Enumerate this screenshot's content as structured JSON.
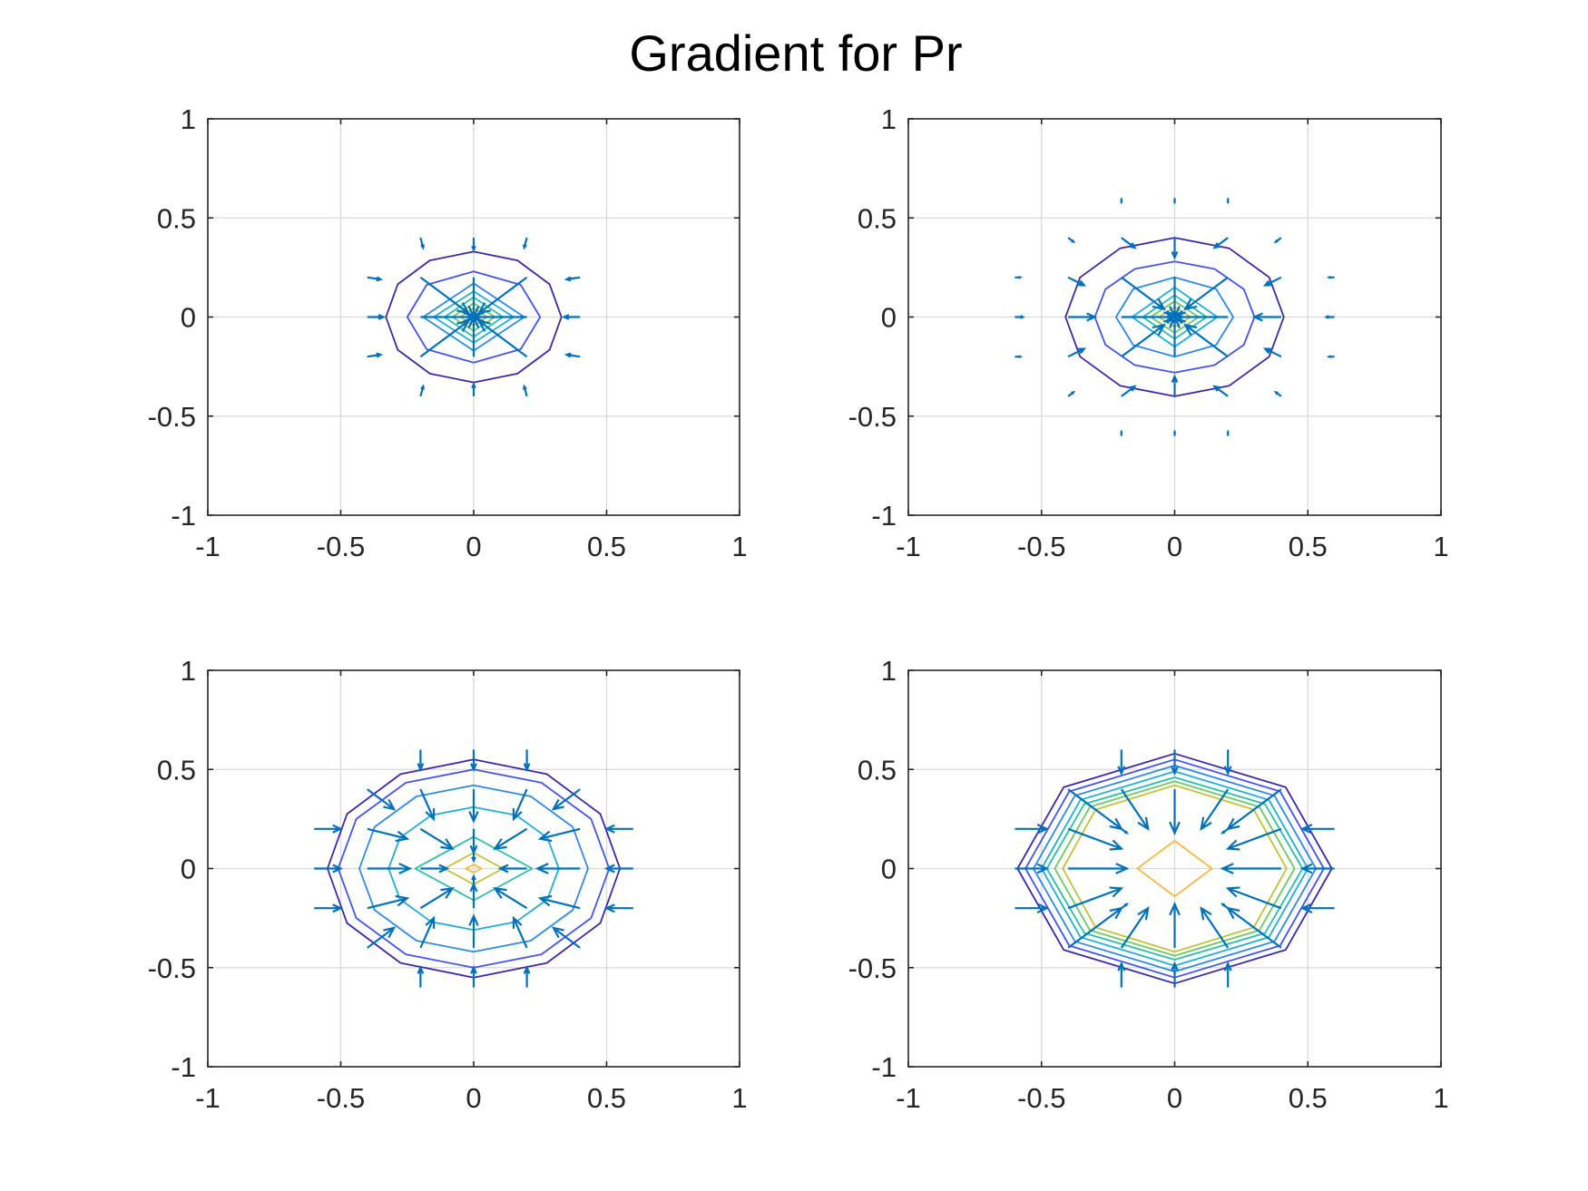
{
  "figure": {
    "title": "Gradient for Pr"
  },
  "colors": {
    "axis": "#262626",
    "grid": "#d9d9d9",
    "arrow": "#0072BD",
    "contour_scale": [
      "#3e26a8",
      "#4353f3",
      "#2e8ae9",
      "#1db1d6",
      "#27c0a8",
      "#6ccb5f",
      "#c1c334",
      "#f8ba3d",
      "#f9fb0e"
    ]
  },
  "chart_data": [
    {
      "type": "contour_quiver",
      "panel": "top-left",
      "xlim": [
        -1,
        1
      ],
      "ylim": [
        -1,
        1
      ],
      "xticks": [
        -1,
        -0.5,
        0,
        0.5,
        1
      ],
      "yticks": [
        -1,
        -0.5,
        0,
        0.5,
        1
      ],
      "xtick_labels": [
        "-1",
        "-0.5",
        "0",
        "0.5",
        "1"
      ],
      "ytick_labels": [
        "-1",
        "-0.5",
        "0",
        "0.5",
        "1"
      ],
      "grid": true,
      "contours": [
        {
          "level": 1,
          "rx": 0.33,
          "ry": 0.33,
          "n": 12
        },
        {
          "level": 2,
          "rx": 0.25,
          "ry": 0.23,
          "n": 8
        },
        {
          "level": 3,
          "rx": 0.19,
          "ry": 0.17,
          "n": 4
        },
        {
          "level": 4,
          "rx": 0.15,
          "ry": 0.13,
          "n": 4
        },
        {
          "level": 5,
          "rx": 0.11,
          "ry": 0.1,
          "n": 4
        },
        {
          "level": 6,
          "rx": 0.08,
          "ry": 0.07,
          "n": 4
        },
        {
          "level": 7,
          "rx": 0.05,
          "ry": 0.045,
          "n": 4
        },
        {
          "level": 8,
          "rx": 0.025,
          "ry": 0.02,
          "n": 4
        }
      ],
      "arrows": [
        [
          -0.2,
          0.2,
          0.18,
          -0.18
        ],
        [
          0,
          0.2,
          0,
          -0.2
        ],
        [
          0.2,
          0.2,
          -0.18,
          -0.18
        ],
        [
          -0.2,
          0,
          0.2,
          0
        ],
        [
          0.2,
          0,
          -0.2,
          0
        ],
        [
          -0.2,
          -0.2,
          0.18,
          0.18
        ],
        [
          0,
          -0.2,
          0,
          0.2
        ],
        [
          0.2,
          -0.2,
          -0.18,
          0.18
        ],
        [
          0,
          0.4,
          0,
          -0.06
        ],
        [
          0,
          -0.4,
          0,
          0.06
        ],
        [
          -0.4,
          0,
          0.06,
          0
        ],
        [
          0.4,
          0,
          -0.06,
          0
        ],
        [
          -0.2,
          0.4,
          0.01,
          -0.05
        ],
        [
          0.2,
          0.4,
          -0.01,
          -0.05
        ],
        [
          -0.2,
          -0.4,
          0.01,
          0.05
        ],
        [
          0.2,
          -0.4,
          -0.01,
          0.05
        ],
        [
          -0.4,
          0.2,
          0.05,
          -0.01
        ],
        [
          0.4,
          0.2,
          -0.05,
          -0.01
        ],
        [
          -0.4,
          -0.2,
          0.05,
          0.01
        ],
        [
          0.4,
          -0.2,
          -0.05,
          0.01
        ],
        [
          -0.02,
          0,
          0.04,
          0
        ],
        [
          0.02,
          0,
          -0.04,
          0
        ],
        [
          0,
          0.02,
          0,
          -0.04
        ],
        [
          0,
          -0.02,
          0,
          0.04
        ],
        [
          -0.02,
          0.02,
          0.03,
          -0.03
        ],
        [
          0.02,
          0.02,
          -0.03,
          -0.03
        ],
        [
          -0.02,
          -0.02,
          0.03,
          0.03
        ],
        [
          0.02,
          -0.02,
          -0.03,
          0.03
        ]
      ]
    },
    {
      "type": "contour_quiver",
      "panel": "top-right",
      "xlim": [
        -1,
        1
      ],
      "ylim": [
        -1,
        1
      ],
      "xticks": [
        -1,
        -0.5,
        0,
        0.5,
        1
      ],
      "yticks": [
        -1,
        -0.5,
        0,
        0.5,
        1
      ],
      "xtick_labels": [
        "-1",
        "-0.5",
        "0",
        "0.5",
        "1"
      ],
      "ytick_labels": [
        "-1",
        "-0.5",
        "0",
        "0.5",
        "1"
      ],
      "grid": true,
      "contours": [
        {
          "level": 1,
          "rx": 0.41,
          "ry": 0.4,
          "n": 12
        },
        {
          "level": 2,
          "rx": 0.3,
          "ry": 0.28,
          "n": 12
        },
        {
          "level": 3,
          "rx": 0.22,
          "ry": 0.2,
          "n": 8
        },
        {
          "level": 4,
          "rx": 0.16,
          "ry": 0.15,
          "n": 4
        },
        {
          "level": 5,
          "rx": 0.12,
          "ry": 0.11,
          "n": 4
        },
        {
          "level": 6,
          "rx": 0.09,
          "ry": 0.08,
          "n": 4
        },
        {
          "level": 7,
          "rx": 0.06,
          "ry": 0.05,
          "n": 4
        },
        {
          "level": 8,
          "rx": 0.03,
          "ry": 0.025,
          "n": 4
        }
      ],
      "arrows": [
        [
          -0.2,
          0.2,
          0.16,
          -0.16
        ],
        [
          0,
          0.2,
          0,
          -0.2
        ],
        [
          0.2,
          0.2,
          -0.16,
          -0.16
        ],
        [
          -0.2,
          0,
          0.2,
          0
        ],
        [
          0.2,
          0,
          -0.2,
          0
        ],
        [
          -0.2,
          -0.2,
          0.16,
          0.16
        ],
        [
          0,
          -0.2,
          0,
          0.2
        ],
        [
          0.2,
          -0.2,
          -0.16,
          0.16
        ],
        [
          0,
          0.4,
          0,
          -0.1
        ],
        [
          0,
          -0.4,
          0,
          0.1
        ],
        [
          -0.4,
          0,
          0.1,
          0
        ],
        [
          0.4,
          0,
          -0.1,
          0
        ],
        [
          -0.2,
          0.4,
          0.05,
          -0.05
        ],
        [
          0.2,
          0.4,
          -0.05,
          -0.05
        ],
        [
          -0.2,
          -0.4,
          0.05,
          0.05
        ],
        [
          0.2,
          -0.4,
          -0.05,
          0.05
        ],
        [
          -0.4,
          0.2,
          0.06,
          -0.04
        ],
        [
          0.4,
          0.2,
          -0.06,
          -0.04
        ],
        [
          -0.4,
          -0.2,
          0.06,
          0.04
        ],
        [
          0.4,
          -0.2,
          -0.06,
          0.04
        ],
        [
          0,
          0.6,
          0,
          -0.02
        ],
        [
          0,
          -0.6,
          0,
          0.02
        ],
        [
          -0.6,
          0,
          0.03,
          0
        ],
        [
          0.6,
          0,
          -0.03,
          0
        ],
        [
          -0.6,
          0.2,
          0.02,
          0
        ],
        [
          0.6,
          0.2,
          -0.02,
          0
        ],
        [
          -0.6,
          -0.2,
          0.02,
          0
        ],
        [
          0.6,
          -0.2,
          -0.02,
          0
        ],
        [
          -0.2,
          0.6,
          0,
          -0.02
        ],
        [
          0.2,
          0.6,
          0,
          -0.02
        ],
        [
          -0.2,
          -0.6,
          0,
          0.02
        ],
        [
          0.2,
          -0.6,
          0,
          0.02
        ],
        [
          -0.4,
          0.4,
          0.02,
          -0.02
        ],
        [
          0.4,
          0.4,
          -0.02,
          -0.02
        ],
        [
          -0.4,
          -0.4,
          0.02,
          0.02
        ],
        [
          0.4,
          -0.4,
          -0.02,
          0.02
        ],
        [
          -0.03,
          0,
          0.06,
          0
        ],
        [
          0.03,
          0,
          -0.06,
          0
        ],
        [
          0,
          0.03,
          0,
          -0.06
        ],
        [
          0,
          -0.03,
          0,
          0.06
        ],
        [
          -0.03,
          0.03,
          0.05,
          -0.05
        ],
        [
          0.03,
          0.03,
          -0.05,
          -0.05
        ],
        [
          -0.03,
          -0.03,
          0.05,
          0.05
        ],
        [
          0.03,
          -0.03,
          -0.05,
          0.05
        ]
      ]
    },
    {
      "type": "contour_quiver",
      "panel": "bottom-left",
      "xlim": [
        -1,
        1
      ],
      "ylim": [
        -1,
        1
      ],
      "xticks": [
        -1,
        -0.5,
        0,
        0.5,
        1
      ],
      "yticks": [
        -1,
        -0.5,
        0,
        0.5,
        1
      ],
      "xtick_labels": [
        "-1",
        "-0.5",
        "0",
        "0.5",
        "1"
      ],
      "ytick_labels": [
        "-1",
        "-0.5",
        "0",
        "0.5",
        "1"
      ],
      "grid": true,
      "contours": [
        {
          "level": 1,
          "rx": 0.55,
          "ry": 0.55,
          "n": 12
        },
        {
          "level": 2,
          "rx": 0.51,
          "ry": 0.5,
          "n": 12
        },
        {
          "level": 3,
          "rx": 0.43,
          "ry": 0.42,
          "n": 12
        },
        {
          "level": 4,
          "rx": 0.32,
          "ry": 0.31,
          "n": 12
        },
        {
          "level": 5,
          "rx": 0.22,
          "ry": 0.16,
          "n": 4
        },
        {
          "level": 7,
          "rx": 0.11,
          "ry": 0.08,
          "n": 4
        },
        {
          "level": 8,
          "rx": 0.03,
          "ry": 0.02,
          "n": 4
        }
      ],
      "arrows": [
        [
          -0.4,
          0.4,
          0.1,
          -0.1
        ],
        [
          -0.2,
          0.4,
          0.05,
          -0.15
        ],
        [
          0,
          0.4,
          0,
          -0.16
        ],
        [
          0.2,
          0.4,
          -0.05,
          -0.15
        ],
        [
          0.4,
          0.4,
          -0.1,
          -0.1
        ],
        [
          -0.4,
          0.2,
          0.15,
          -0.05
        ],
        [
          -0.2,
          0.2,
          0.12,
          -0.1
        ],
        [
          0,
          0.2,
          0,
          -0.12
        ],
        [
          0.2,
          0.2,
          -0.12,
          -0.1
        ],
        [
          0.4,
          0.2,
          -0.15,
          -0.05
        ],
        [
          -0.4,
          0,
          0.16,
          0
        ],
        [
          -0.2,
          0,
          0.1,
          0
        ],
        [
          0.2,
          0,
          -0.1,
          0
        ],
        [
          0.4,
          0,
          -0.16,
          0
        ],
        [
          -0.4,
          -0.2,
          0.15,
          0.05
        ],
        [
          -0.2,
          -0.2,
          0.12,
          0.1
        ],
        [
          0,
          -0.2,
          0,
          0.12
        ],
        [
          0.2,
          -0.2,
          -0.12,
          0.1
        ],
        [
          0.4,
          -0.2,
          -0.15,
          0.05
        ],
        [
          -0.4,
          -0.4,
          0.1,
          0.1
        ],
        [
          -0.2,
          -0.4,
          0.05,
          0.15
        ],
        [
          0,
          -0.4,
          0,
          0.16
        ],
        [
          0.2,
          -0.4,
          -0.05,
          0.15
        ],
        [
          0.4,
          -0.4,
          -0.1,
          0.1
        ],
        [
          -0.2,
          0.6,
          0,
          -0.1
        ],
        [
          0,
          0.6,
          0,
          -0.1
        ],
        [
          0.2,
          0.6,
          0,
          -0.1
        ],
        [
          -0.2,
          -0.6,
          0,
          0.1
        ],
        [
          0,
          -0.6,
          0,
          0.1
        ],
        [
          0.2,
          -0.6,
          0,
          0.1
        ],
        [
          -0.6,
          0.2,
          0.1,
          0
        ],
        [
          -0.6,
          0,
          0.1,
          0
        ],
        [
          -0.6,
          -0.2,
          0.1,
          0
        ],
        [
          0.6,
          0.2,
          -0.1,
          0
        ],
        [
          0.6,
          0,
          -0.1,
          0
        ],
        [
          0.6,
          -0.2,
          -0.1,
          0
        ],
        [
          0,
          0.1,
          0,
          -0.06
        ],
        [
          0,
          -0.1,
          0,
          0.06
        ]
      ]
    },
    {
      "type": "contour_quiver",
      "panel": "bottom-right",
      "xlim": [
        -1,
        1
      ],
      "ylim": [
        -1,
        1
      ],
      "xticks": [
        -1,
        -0.5,
        0,
        0.5,
        1
      ],
      "yticks": [
        -1,
        -0.5,
        0,
        0.5,
        1
      ],
      "xtick_labels": [
        "-1",
        "-0.5",
        "0",
        "0.5",
        "1"
      ],
      "ytick_labels": [
        "-1",
        "-0.5",
        "0",
        "0.5",
        "1"
      ],
      "grid": true,
      "contours": [
        {
          "level": 1,
          "rx": 0.59,
          "ry": 0.58,
          "n": 8
        },
        {
          "level": 2,
          "rx": 0.56,
          "ry": 0.55,
          "n": 8
        },
        {
          "level": 3,
          "rx": 0.53,
          "ry": 0.52,
          "n": 8
        },
        {
          "level": 4,
          "rx": 0.5,
          "ry": 0.49,
          "n": 8
        },
        {
          "level": 5,
          "rx": 0.48,
          "ry": 0.46,
          "n": 8
        },
        {
          "level": 6,
          "rx": 0.45,
          "ry": 0.44,
          "n": 8
        },
        {
          "level": 7,
          "rx": 0.42,
          "ry": 0.42,
          "n": 8
        },
        {
          "level": 8,
          "rx": 0.14,
          "ry": 0.14,
          "n": 4
        }
      ],
      "arrows": [
        [
          -0.4,
          0.4,
          0.2,
          -0.2
        ],
        [
          -0.2,
          0.4,
          0.1,
          -0.2
        ],
        [
          0,
          0.4,
          0,
          -0.22
        ],
        [
          0.2,
          0.4,
          -0.1,
          -0.2
        ],
        [
          0.4,
          0.4,
          -0.2,
          -0.2
        ],
        [
          -0.4,
          0.2,
          0.2,
          -0.1
        ],
        [
          -0.2,
          0.2,
          0.02,
          -0.02
        ],
        [
          0,
          0.2,
          0,
          -0.02
        ],
        [
          0.2,
          0.2,
          -0.02,
          -0.02
        ],
        [
          0.4,
          0.2,
          -0.2,
          -0.1
        ],
        [
          -0.4,
          0,
          0.22,
          0
        ],
        [
          -0.2,
          0,
          0.02,
          0
        ],
        [
          0.2,
          0,
          -0.02,
          0
        ],
        [
          0.4,
          0,
          -0.22,
          0
        ],
        [
          -0.4,
          -0.2,
          0.2,
          0.1
        ],
        [
          -0.2,
          -0.2,
          0.02,
          0.02
        ],
        [
          0,
          -0.2,
          0,
          0.02
        ],
        [
          0.2,
          -0.2,
          -0.02,
          0.02
        ],
        [
          0.4,
          -0.2,
          -0.2,
          0.1
        ],
        [
          -0.4,
          -0.4,
          0.2,
          0.2
        ],
        [
          -0.2,
          -0.4,
          0.1,
          0.2
        ],
        [
          0,
          -0.4,
          0,
          0.22
        ],
        [
          0.2,
          -0.4,
          -0.1,
          0.2
        ],
        [
          0.4,
          -0.4,
          -0.2,
          0.2
        ],
        [
          -0.2,
          0.6,
          0,
          -0.12
        ],
        [
          0,
          0.6,
          0,
          -0.12
        ],
        [
          0.2,
          0.6,
          0,
          -0.12
        ],
        [
          -0.2,
          -0.6,
          0,
          0.12
        ],
        [
          0,
          -0.6,
          0,
          0.12
        ],
        [
          0.2,
          -0.6,
          0,
          0.12
        ],
        [
          -0.6,
          0.2,
          0.12,
          0
        ],
        [
          -0.6,
          0,
          0.12,
          0
        ],
        [
          -0.6,
          -0.2,
          0.12,
          0
        ],
        [
          0.6,
          0.2,
          -0.12,
          0
        ],
        [
          0.6,
          0,
          -0.12,
          0
        ],
        [
          0.6,
          -0.2,
          -0.12,
          0
        ]
      ]
    }
  ]
}
